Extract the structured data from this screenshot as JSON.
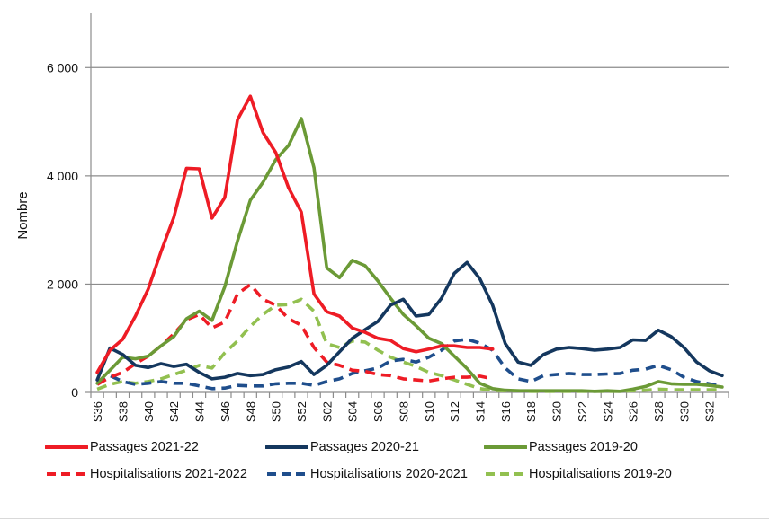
{
  "chart_data": {
    "type": "line",
    "title": "",
    "xlabel": "",
    "ylabel": "Nombre",
    "ylim": [
      0,
      7000
    ],
    "yticks": [
      0,
      2000,
      4000,
      6000
    ],
    "ytick_labels": [
      "0",
      "2 000",
      "4 000",
      "6 000"
    ],
    "grid": "horizontal",
    "legend_position": "bottom",
    "x": [
      "S36",
      "S37",
      "S38",
      "S39",
      "S40",
      "S41",
      "S42",
      "S43",
      "S44",
      "S45",
      "S46",
      "S47",
      "S48",
      "S49",
      "S50",
      "S51",
      "S52",
      "S01",
      "S02",
      "S03",
      "S04",
      "S05",
      "S06",
      "S07",
      "S08",
      "S09",
      "S10",
      "S11",
      "S12",
      "S13",
      "S14",
      "S15",
      "S16",
      "S17",
      "S18",
      "S19",
      "S20",
      "S21",
      "S22",
      "S23",
      "S24",
      "S25",
      "S26",
      "S27",
      "S28",
      "S29",
      "S30",
      "S31",
      "S32",
      "S33"
    ],
    "xtick_labels_shown": [
      "S36",
      "S38",
      "S40",
      "S42",
      "S44",
      "S46",
      "S48",
      "S50",
      "S52",
      "S02",
      "S04",
      "S06",
      "S08",
      "S10",
      "S12",
      "S14",
      "S16",
      "S18",
      "S20",
      "S22",
      "S24",
      "S26",
      "S28",
      "S30",
      "S32"
    ],
    "series": [
      {
        "name": "Passages 2021-22",
        "color": "#ee1c25",
        "dash": false,
        "values": [
          370,
          780,
          980,
          1410,
          1910,
          2600,
          3230,
          4140,
          4130,
          3220,
          3600,
          5040,
          5470,
          4800,
          4430,
          3780,
          3330,
          1820,
          1490,
          1410,
          1190,
          1110,
          1000,
          960,
          810,
          750,
          800,
          860,
          860,
          830,
          830,
          800,
          null,
          null,
          null,
          null,
          null,
          null,
          null,
          null,
          null,
          null,
          null,
          null,
          null,
          null,
          null,
          null,
          null,
          null
        ]
      },
      {
        "name": "Passages 2020-21",
        "color": "#14375e",
        "dash": false,
        "values": [
          230,
          820,
          700,
          500,
          460,
          530,
          480,
          520,
          370,
          250,
          280,
          350,
          310,
          330,
          420,
          470,
          570,
          330,
          500,
          750,
          1000,
          1160,
          1310,
          1610,
          1720,
          1410,
          1440,
          1740,
          2200,
          2400,
          2100,
          1610,
          900,
          560,
          500,
          700,
          800,
          830,
          810,
          780,
          800,
          830,
          970,
          960,
          1150,
          1030,
          830,
          560,
          400,
          310
        ]
      },
      {
        "name": "Passages 2019-20",
        "color": "#6b9a36",
        "dash": false,
        "values": [
          170,
          410,
          650,
          620,
          670,
          860,
          1030,
          1360,
          1500,
          1330,
          1950,
          2800,
          3550,
          3880,
          4300,
          4560,
          5060,
          4150,
          2300,
          2120,
          2440,
          2340,
          2060,
          1740,
          1440,
          1230,
          1000,
          900,
          670,
          440,
          170,
          70,
          40,
          30,
          30,
          30,
          30,
          30,
          30,
          20,
          30,
          20,
          60,
          110,
          200,
          160,
          150,
          150,
          130,
          100
        ]
      },
      {
        "name": "Hospitalisations 2021-2022",
        "color": "#ee1c25",
        "dash": true,
        "values": [
          150,
          280,
          370,
          530,
          670,
          860,
          1080,
          1340,
          1440,
          1190,
          1300,
          1820,
          1990,
          1720,
          1610,
          1360,
          1240,
          830,
          560,
          500,
          410,
          390,
          330,
          310,
          250,
          230,
          210,
          250,
          280,
          280,
          300,
          250,
          null,
          null,
          null,
          null,
          null,
          null,
          null,
          null,
          null,
          null,
          null,
          null,
          null,
          null,
          null,
          null,
          null,
          null
        ]
      },
      {
        "name": "Hospitalisations 2020-2021",
        "color": "#1f4e8c",
        "dash": true,
        "values": [
          150,
          310,
          200,
          150,
          170,
          200,
          170,
          170,
          120,
          70,
          80,
          130,
          120,
          120,
          160,
          170,
          170,
          130,
          200,
          250,
          350,
          400,
          450,
          580,
          610,
          560,
          650,
          780,
          950,
          980,
          910,
          780,
          450,
          250,
          200,
          310,
          330,
          350,
          330,
          330,
          340,
          350,
          410,
          430,
          500,
          420,
          280,
          200,
          160,
          110
        ]
      },
      {
        "name": "Hospitalisations 2019-20",
        "color": "#92c050",
        "dash": true,
        "values": [
          60,
          150,
          200,
          170,
          200,
          250,
          330,
          410,
          500,
          450,
          730,
          950,
          1220,
          1440,
          1610,
          1620,
          1720,
          1500,
          900,
          830,
          950,
          930,
          780,
          650,
          560,
          480,
          370,
          310,
          230,
          150,
          70,
          40,
          30,
          30,
          20,
          20,
          20,
          20,
          20,
          20,
          20,
          20,
          30,
          40,
          60,
          50,
          50,
          50,
          50,
          50
        ]
      }
    ]
  },
  "legend": {
    "items": [
      {
        "label": "Passages 2021-22",
        "color": "#ee1c25",
        "dash": false
      },
      {
        "label": "Passages 2020-21",
        "color": "#14375e",
        "dash": false
      },
      {
        "label": "Passages 2019-20",
        "color": "#6b9a36",
        "dash": false
      },
      {
        "label": "Hospitalisations 2021-2022",
        "color": "#ee1c25",
        "dash": true
      },
      {
        "label": "Hospitalisations 2020-2021",
        "color": "#1f4e8c",
        "dash": true
      },
      {
        "label": "Hospitalisations 2019-20",
        "color": "#92c050",
        "dash": true
      }
    ]
  }
}
